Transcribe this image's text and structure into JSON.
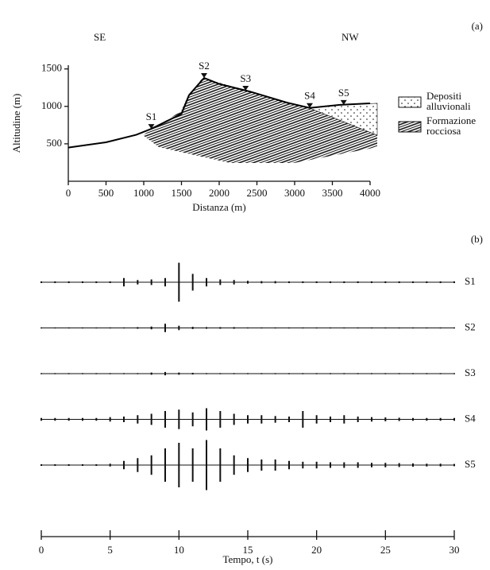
{
  "chart_data": [
    {
      "type": "line",
      "panel_label": "(a)",
      "left_label": "SE",
      "right_label": "NW",
      "x_label": "Distanza (m)",
      "y_label": "Altitudine (m)",
      "x": [
        0,
        500,
        900,
        1100,
        1500,
        1600,
        1800,
        2000,
        2400,
        2900,
        3200,
        3600,
        4000
      ],
      "values": [
        450,
        520,
        620,
        700,
        900,
        1150,
        1380,
        1300,
        1200,
        1050,
        980,
        1020,
        1040
      ],
      "color": "#000000",
      "stations": {
        "names": [
          "S1",
          "S2",
          "S3",
          "S4",
          "S5"
        ],
        "x": [
          1100,
          1800,
          2350,
          3200,
          3650
        ],
        "y": [
          700,
          1380,
          1210,
          980,
          1020
        ]
      },
      "xlim": [
        0,
        4000
      ],
      "xticks": [
        0,
        500,
        1000,
        1500,
        2000,
        2500,
        3000,
        3500,
        4000
      ],
      "ylim": [
        0,
        1550
      ],
      "yticks": [
        500,
        1000,
        1500
      ],
      "legend": [
        [
          "Depositi",
          "alluvionali"
        ],
        [
          "Formazione",
          "rocciosa"
        ]
      ]
    },
    {
      "type": "seismogram",
      "panel_label": "(b)",
      "x_label": "Tempo, t (s)",
      "xlim": [
        0,
        30
      ],
      "xticks": [
        0,
        5,
        10,
        15,
        20,
        25,
        30
      ],
      "x": [
        0,
        1,
        2,
        3,
        4,
        5,
        6,
        7,
        8,
        9,
        10,
        11,
        12,
        13,
        14,
        15,
        16,
        17,
        18,
        19,
        20,
        21,
        22,
        23,
        24,
        25,
        26,
        27,
        28,
        29,
        30
      ],
      "color": "#111111",
      "series": [
        {
          "name": "S1",
          "values": [
            0.3,
            0.3,
            0.3,
            0.3,
            0.3,
            0.3,
            1.5,
            0.8,
            1,
            1.5,
            7,
            3,
            1.5,
            1,
            0.8,
            0.5,
            0.4,
            0.4,
            0.3,
            0.3,
            0.3,
            0.3,
            0.3,
            0.3,
            0.3,
            0.3,
            0.3,
            0.3,
            0.3,
            0.3,
            0.3
          ]
        },
        {
          "name": "S2",
          "values": [
            0.2,
            0.2,
            0.2,
            0.2,
            0.2,
            0.2,
            0.2,
            0.3,
            0.5,
            1.5,
            0.8,
            0.4,
            0.3,
            0.3,
            0.3,
            0.2,
            0.2,
            0.2,
            0.2,
            0.2,
            0.2,
            0.2,
            0.2,
            0.2,
            0.2,
            0.2,
            0.2,
            0.2,
            0.2,
            0.2,
            0.2
          ]
        },
        {
          "name": "S3",
          "values": [
            0.2,
            0.2,
            0.2,
            0.2,
            0.2,
            0.2,
            0.2,
            0.2,
            0.4,
            0.6,
            0.4,
            0.3,
            0.2,
            0.2,
            0.2,
            0.2,
            0.2,
            0.2,
            0.2,
            0.2,
            0.2,
            0.2,
            0.2,
            0.2,
            0.2,
            0.2,
            0.2,
            0.2,
            0.2,
            0.2,
            0.2
          ]
        },
        {
          "name": "S4",
          "values": [
            0.5,
            0.5,
            0.5,
            0.5,
            0.5,
            0.8,
            1,
            1.5,
            2,
            3,
            3.5,
            2.5,
            4,
            3,
            2,
            1.5,
            1.5,
            1.2,
            1,
            3,
            1.5,
            1,
            1.5,
            1,
            0.8,
            0.7,
            0.6,
            0.5,
            0.5,
            0.5,
            0.5
          ]
        },
        {
          "name": "S5",
          "values": [
            0.3,
            0.3,
            0.3,
            0.3,
            0.3,
            0.5,
            1.5,
            2.5,
            3.5,
            6,
            8,
            6,
            9,
            6,
            3.5,
            2.5,
            2,
            2,
            1.5,
            1.2,
            1.2,
            1,
            1,
            1,
            0.8,
            0.8,
            0.7,
            0.6,
            0.5,
            0.5,
            0.4
          ]
        }
      ]
    }
  ]
}
